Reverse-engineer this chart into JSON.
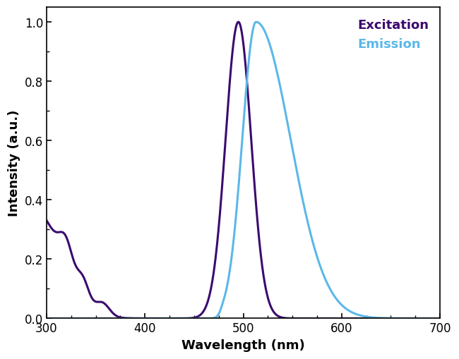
{
  "excitation_color": "#3B0A6E",
  "emission_color": "#5BB8E8",
  "excitation_linewidth": 2.2,
  "emission_linewidth": 2.2,
  "xlabel": "Wavelength (nm)",
  "ylabel": "Intensity (a.u.)",
  "xlim": [
    300,
    700
  ],
  "ylim": [
    0,
    1.05
  ],
  "yticks": [
    0,
    0.2,
    0.4,
    0.6,
    0.8,
    1.0
  ],
  "xticks": [
    300,
    400,
    500,
    600,
    700
  ],
  "legend_excitation": "Excitation",
  "legend_emission": "Emission",
  "background_color": "#ffffff"
}
